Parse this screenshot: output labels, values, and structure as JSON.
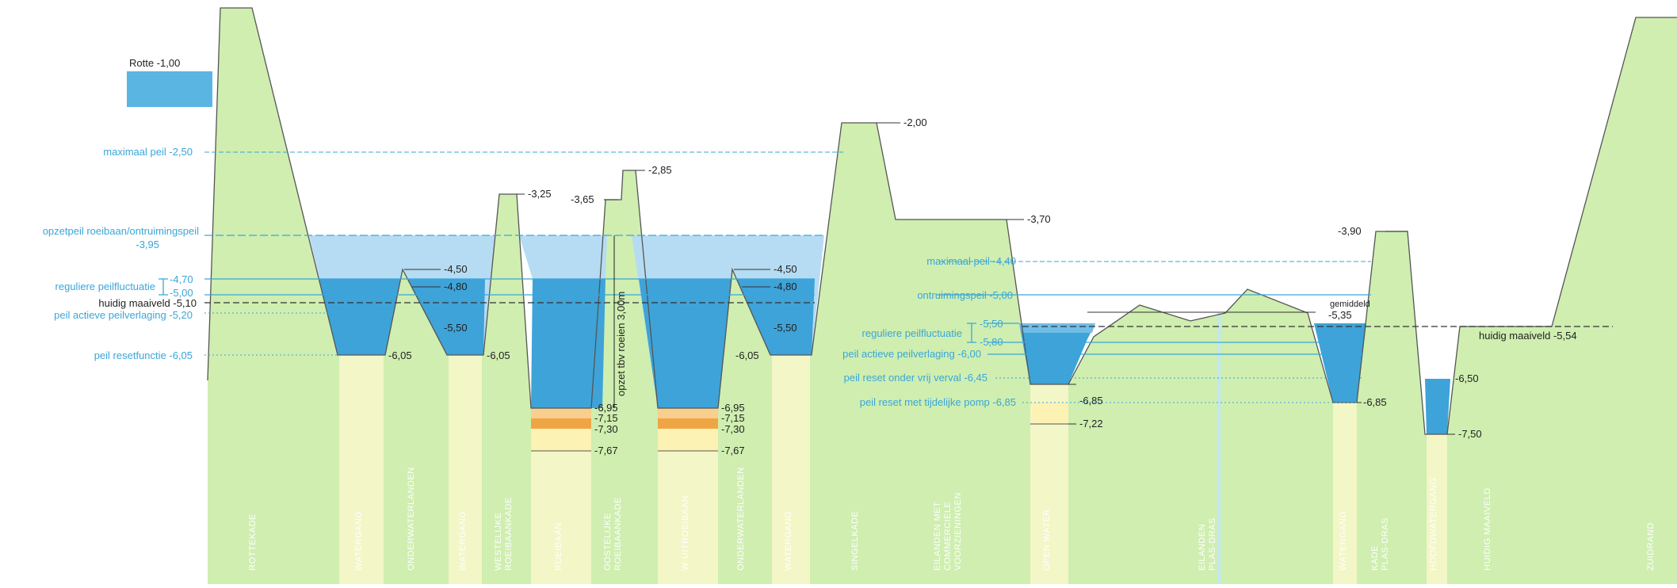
{
  "colors": {
    "ground": "#cfeeb0",
    "ground_stroke": "#555555",
    "water_light": "#b6dcf3",
    "water_mid": "#6fbde8",
    "water_dark": "#3ea3d8",
    "sand_light": "#fbf2b4",
    "sand_mid": "#f8cf8c",
    "sand_dark": "#f0a545",
    "column": "#f3f6c6",
    "blue_text": "#3aa6d9",
    "black_text": "#222222"
  },
  "left_labels": {
    "rotte": "Rotte -1,00",
    "maximaal_peil": "maximaal peil -2,50",
    "opzetpeil_1": "opzetpeil roeibaan/ontruimingspeil",
    "opzetpeil_2": "-3,95",
    "reguliere": "reguliere peilfluctuatie",
    "v470": "-4,70",
    "v500": "-5,00",
    "huidig_maaiveld": "huidig maaiveld -5,10",
    "actieve": "peil actieve peilverlaging -5,20",
    "resetfunctie": "peil resetfunctie -6,05"
  },
  "levels_left": {
    "v450a": "-4,50",
    "v480a": "-4,80",
    "v550a": "-5,50",
    "v605a": "-6,05",
    "v605b": "-6,05",
    "v325": "-3,25",
    "v365": "-3,65",
    "v285": "-2,85",
    "v695a": "-6,95",
    "v715a": "-7,15",
    "v730a": "-7,30",
    "v767a": "-7,67",
    "v695b": "-6,95",
    "v715b": "-7,15",
    "v730b": "-7,30",
    "v767b": "-7,67",
    "opzet": "opzet tbv roeien 3,00m",
    "v450b": "-4,50",
    "v480b": "-4,80",
    "v550b": "-5,50",
    "v605c": "-6,05",
    "v200": "-2,00",
    "v370": "-3,70"
  },
  "right_labels": {
    "maximaal_peil": "maximaal peil -4,40",
    "ontruimingspeil": "ontruimingspeil -5,00",
    "reguliere": "reguliere peilfluctuatie",
    "v550": "-5,50",
    "v580": "-5,80",
    "actieve": "peil actieve peilverlaging -6,00",
    "reset_vrij": "peil reset onder vrij verval -6,45",
    "reset_pomp": "peil reset met tijdelijke pomp -6,85",
    "v685a": "-6,85",
    "v722": "-7,22",
    "gemiddeld": "gemiddeld",
    "v535": "-5,35",
    "v390": "-3,90",
    "v685b": "-6,85",
    "v650": "-6,50",
    "v750": "-7,50",
    "huidig_maaiveld": "huidig maaiveld -5,54"
  },
  "sections": [
    "ROTTEKADE",
    "WATERGANG",
    "ONDERWATERLANDEN",
    "WATERGANG",
    "WESTELIJKE ROEIBAANKADE",
    "ROEIBAAN",
    "OOSTELIJKE ROEIBAANKADE",
    "W-UITROEIBAAN",
    "ONDERWATERLANDEN",
    "WATERGANG",
    "SINGELKADE",
    "EILANDEN MET COMMERCIELE VOORZIENINGEN",
    "OPEN WATER",
    "EILANDEN PLAS-DRAS",
    "WATERGANG",
    "KADE PLAS-DRAS",
    "HOOFDWATERGANG",
    "HUIDIG MAAIVELD",
    "ZUIDRAND"
  ]
}
